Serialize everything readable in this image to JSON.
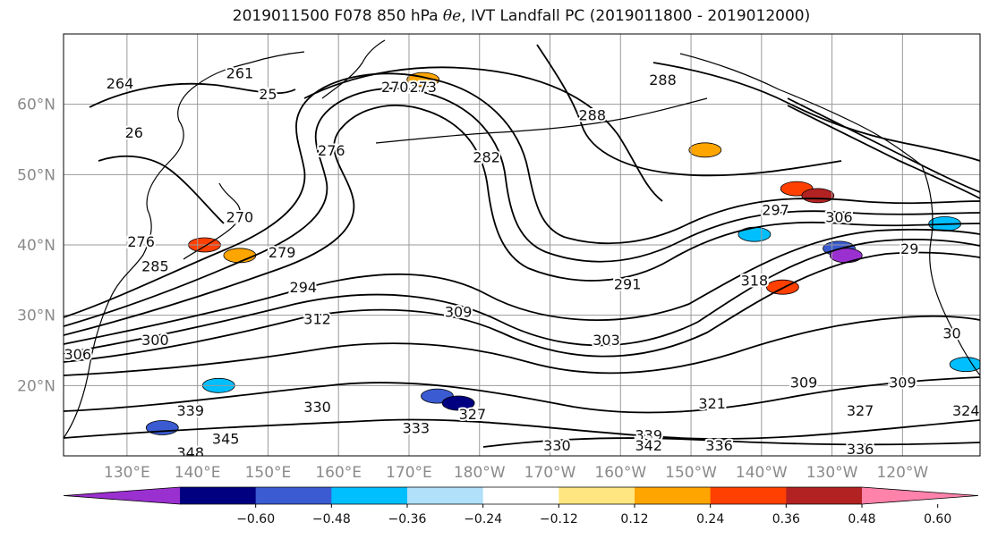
{
  "title_parts": {
    "prefix": "2019011500 F078 850 hPa",
    "symbol": "θe",
    "suffix": ", IVT Landfall PC (2019011800 - 2019012000)"
  },
  "chart_data": {
    "type": "contour-map",
    "title": "2019011500 F078 850 hPa θe, IVT Landfall PC (2019011800 - 2019012000)",
    "lat_ticks": [
      "60°N",
      "50°N",
      "40°N",
      "30°N",
      "20°N"
    ],
    "lon_ticks": [
      "130°E",
      "140°E",
      "150°E",
      "160°E",
      "170°E",
      "180°W",
      "170°W",
      "160°W",
      "150°W",
      "140°W",
      "130°W",
      "120°W"
    ],
    "lat_range": [
      10,
      70
    ],
    "lon_range_east": [
      121,
      251
    ],
    "gridlines": true,
    "colorbar": {
      "ticks": [
        "−0.60",
        "−0.48",
        "−0.36",
        "−0.24",
        "−0.12",
        "0.12",
        "0.24",
        "0.36",
        "0.48",
        "0.60"
      ],
      "bin_colors": [
        "#9b30d0",
        "#000080",
        "#3a5bd1",
        "#00bfff",
        "#b0e0fa",
        "#ffffff",
        "#ffe680",
        "#ffa500",
        "#ff4000",
        "#b22222",
        "#ff82ab"
      ],
      "extend": "both"
    },
    "contour_labels": [
      {
        "text": "264",
        "lat": 63,
        "lon": 129
      },
      {
        "text": "261",
        "lat": 64.5,
        "lon": 146
      },
      {
        "text": "25",
        "lat": 61.5,
        "lon": 150
      },
      {
        "text": "270",
        "lat": 62.5,
        "lon": 168
      },
      {
        "text": "273",
        "lat": 62.5,
        "lon": 172
      },
      {
        "text": "288",
        "lat": 63.5,
        "lon": 206
      },
      {
        "text": "288",
        "lat": 58.5,
        "lon": 196
      },
      {
        "text": "26",
        "lat": 56,
        "lon": 131
      },
      {
        "text": "276",
        "lat": 53.5,
        "lon": 159
      },
      {
        "text": "282",
        "lat": 52.5,
        "lon": 181
      },
      {
        "text": "270",
        "lat": 44,
        "lon": 146
      },
      {
        "text": "276",
        "lat": 40.5,
        "lon": 132
      },
      {
        "text": "279",
        "lat": 39,
        "lon": 152
      },
      {
        "text": "285",
        "lat": 37,
        "lon": 134
      },
      {
        "text": "294",
        "lat": 34,
        "lon": 155
      },
      {
        "text": "297",
        "lat": 45,
        "lon": 222
      },
      {
        "text": "306",
        "lat": 44,
        "lon": 231
      },
      {
        "text": "291",
        "lat": 34.5,
        "lon": 201
      },
      {
        "text": "309",
        "lat": 30.5,
        "lon": 177
      },
      {
        "text": "318",
        "lat": 35,
        "lon": 219
      },
      {
        "text": "312",
        "lat": 29.5,
        "lon": 157
      },
      {
        "text": "300",
        "lat": 26.5,
        "lon": 134
      },
      {
        "text": "306",
        "lat": 24.5,
        "lon": 123
      },
      {
        "text": "303",
        "lat": 26.5,
        "lon": 198
      },
      {
        "text": "309",
        "lat": 20.5,
        "lon": 226
      },
      {
        "text": "309",
        "lat": 20.5,
        "lon": 240
      },
      {
        "text": "321",
        "lat": 17.5,
        "lon": 213
      },
      {
        "text": "327",
        "lat": 16,
        "lon": 179
      },
      {
        "text": "327",
        "lat": 16.5,
        "lon": 234
      },
      {
        "text": "324",
        "lat": 16.5,
        "lon": 249
      },
      {
        "text": "330",
        "lat": 17,
        "lon": 157
      },
      {
        "text": "333",
        "lat": 14,
        "lon": 171
      },
      {
        "text": "339",
        "lat": 16.5,
        "lon": 139
      },
      {
        "text": "345",
        "lat": 12.5,
        "lon": 144
      },
      {
        "text": "348",
        "lat": 10.5,
        "lon": 139
      },
      {
        "text": "339",
        "lat": 13,
        "lon": 204
      },
      {
        "text": "342",
        "lat": 11.5,
        "lon": 204
      },
      {
        "text": "336",
        "lat": 11.5,
        "lon": 214
      },
      {
        "text": "336",
        "lat": 11,
        "lon": 234
      },
      {
        "text": "330",
        "lat": 11.5,
        "lon": 191
      },
      {
        "text": "29",
        "lat": 39.5,
        "lon": 241
      },
      {
        "text": "30",
        "lat": 27.5,
        "lon": 247
      }
    ],
    "shaded_regions": [
      {
        "value": "0.24",
        "lat": 63.5,
        "lon": 172
      },
      {
        "value": "0.24",
        "lat": 53.5,
        "lon": 212
      },
      {
        "value": "0.36",
        "lat": 48,
        "lon": 225
      },
      {
        "value": "0.48",
        "lat": 47,
        "lon": 228
      },
      {
        "value": "0.36",
        "lat": 40,
        "lon": 141
      },
      {
        "value": "0.24",
        "lat": 38.5,
        "lon": 146
      },
      {
        "value": "0.36",
        "lat": 34,
        "lon": 223
      },
      {
        "value": "-0.24",
        "lat": 41.5,
        "lon": 219
      },
      {
        "value": "-0.36",
        "lat": 39.5,
        "lon": 231
      },
      {
        "value": "-0.60",
        "lat": 38.5,
        "lon": 232
      },
      {
        "value": "-0.24",
        "lat": 43,
        "lon": 246
      },
      {
        "value": "-0.36",
        "lat": 18.5,
        "lon": 174
      },
      {
        "value": "-0.48",
        "lat": 17.5,
        "lon": 177
      },
      {
        "value": "-0.24",
        "lat": 20,
        "lon": 143
      },
      {
        "value": "-0.36",
        "lat": 14,
        "lon": 135
      },
      {
        "value": "-0.24",
        "lat": 23,
        "lon": 249
      }
    ]
  }
}
